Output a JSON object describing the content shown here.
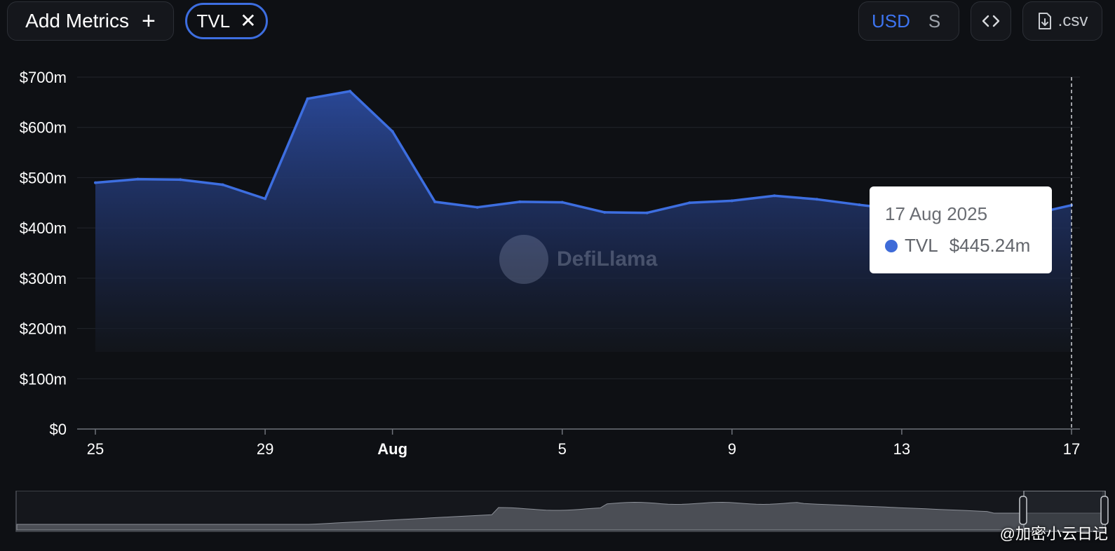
{
  "toolbar": {
    "add_metrics_label": "Add Metrics",
    "metric_chip_label": "TVL",
    "currency_primary": "USD",
    "currency_secondary": "S",
    "embed_icon": "code-brackets-icon",
    "csv_label": ".csv",
    "csv_icon": "download-file-icon"
  },
  "watermark": {
    "logo_text": "DefiLlama",
    "corner_text": "@加密小云日记"
  },
  "tooltip": {
    "date": "17 Aug 2025",
    "series": "TVL",
    "value": "$445.24m"
  },
  "colors": {
    "line": "#3d6ee0",
    "fill_top": "#2b4a9c",
    "background": "#0e1014"
  },
  "chart_data": {
    "type": "area",
    "title": "",
    "xlabel": "",
    "ylabel": "",
    "ylim": [
      0,
      700
    ],
    "y_ticks": [
      0,
      100,
      200,
      300,
      400,
      500,
      600,
      700
    ],
    "y_tick_labels": [
      "$0",
      "$100m",
      "$200m",
      "$300m",
      "$400m",
      "$500m",
      "$600m",
      "$700m"
    ],
    "x_ticks": [
      {
        "label": "25",
        "day": 0,
        "bold": false
      },
      {
        "label": "29",
        "day": 4,
        "bold": false
      },
      {
        "label": "Aug",
        "day": 7,
        "bold": true
      },
      {
        "label": "5",
        "day": 11,
        "bold": false
      },
      {
        "label": "9",
        "day": 15,
        "bold": false
      },
      {
        "label": "13",
        "day": 19,
        "bold": false
      },
      {
        "label": "17",
        "day": 23,
        "bold": false
      }
    ],
    "dates": [
      "25 Jul",
      "26 Jul",
      "27 Jul",
      "28 Jul",
      "29 Jul",
      "30 Jul",
      "31 Jul",
      "1 Aug",
      "2 Aug",
      "3 Aug",
      "4 Aug",
      "5 Aug",
      "6 Aug",
      "7 Aug",
      "8 Aug",
      "9 Aug",
      "10 Aug",
      "11 Aug",
      "12 Aug",
      "13 Aug",
      "14 Aug",
      "15 Aug",
      "16 Aug",
      "17 Aug"
    ],
    "series": [
      {
        "name": "TVL",
        "values": [
          490,
          497,
          496,
          486,
          458,
          657,
          672,
          592,
          452,
          441,
          452,
          451,
          431,
          430,
          450,
          454,
          464,
          457,
          446,
          436,
          432,
          428,
          426,
          445.24
        ]
      }
    ],
    "grid": true,
    "legend": "none"
  }
}
